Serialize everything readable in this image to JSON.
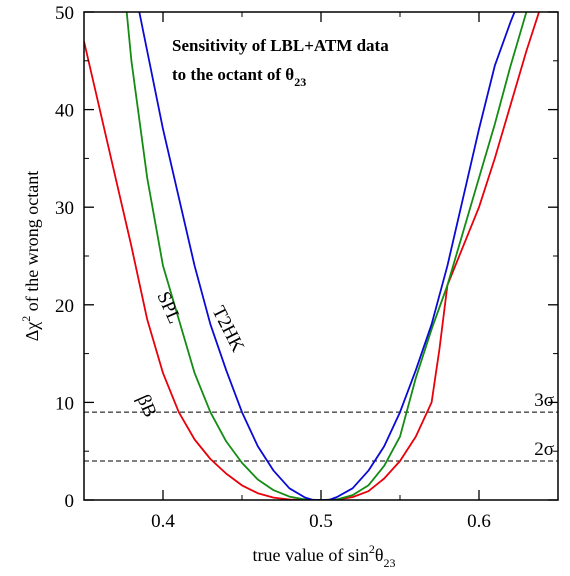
{
  "chart_data": {
    "type": "line",
    "title_line1": "Sensitivity of LBL+ATM data",
    "title_line2_prefix": "to the octant of θ",
    "title_line2_sub": "23",
    "xlabel_prefix": "true value of  sin",
    "xlabel_sup": "2",
    "xlabel_theta": "θ",
    "xlabel_sub": "23",
    "ylabel_prefix": "Δχ",
    "ylabel_sup": "2",
    "ylabel_suffix": " of the wrong octant",
    "xlim": [
      0.35,
      0.65
    ],
    "ylim": [
      0,
      50
    ],
    "x_ticks": [
      {
        "value": 0.4,
        "label": "0.4"
      },
      {
        "value": 0.5,
        "label": "0.5"
      },
      {
        "value": 0.6,
        "label": "0.6"
      }
    ],
    "y_ticks": [
      {
        "value": 0,
        "label": "0"
      },
      {
        "value": 10,
        "label": "10"
      },
      {
        "value": 20,
        "label": "20"
      },
      {
        "value": 30,
        "label": "30"
      },
      {
        "value": 40,
        "label": "40"
      },
      {
        "value": 50,
        "label": "50"
      }
    ],
    "reference_lines": [
      {
        "y": 9,
        "label": "3σ"
      },
      {
        "y": 4,
        "label": "2σ"
      }
    ],
    "series": [
      {
        "name": "βB",
        "color": "#e8000b",
        "x": [
          0.35,
          0.36,
          0.37,
          0.38,
          0.39,
          0.4,
          0.41,
          0.42,
          0.43,
          0.44,
          0.45,
          0.46,
          0.47,
          0.48,
          0.49,
          0.5,
          0.51,
          0.52,
          0.53,
          0.54,
          0.55,
          0.56,
          0.57,
          0.575,
          0.58,
          0.59,
          0.6,
          0.61,
          0.62,
          0.63,
          0.64
        ],
        "y": [
          47,
          40,
          33,
          26,
          18.5,
          13,
          9,
          6.2,
          4.2,
          2.7,
          1.5,
          0.7,
          0.25,
          0.05,
          0,
          0,
          0.05,
          0.3,
          0.9,
          2.2,
          4,
          6.5,
          10,
          15.5,
          22,
          26,
          30,
          35,
          40.5,
          46,
          51
        ]
      },
      {
        "name": "SPL",
        "color": "#138c13",
        "x": [
          0.377,
          0.38,
          0.39,
          0.4,
          0.41,
          0.42,
          0.43,
          0.44,
          0.45,
          0.46,
          0.47,
          0.48,
          0.49,
          0.5,
          0.51,
          0.52,
          0.53,
          0.54,
          0.55,
          0.555,
          0.56,
          0.565,
          0.57,
          0.58,
          0.59,
          0.6,
          0.61,
          0.62,
          0.63
        ],
        "y": [
          50,
          45,
          33,
          24,
          18.5,
          13,
          9,
          6,
          3.8,
          2.1,
          1,
          0.35,
          0.05,
          0,
          0.05,
          0.5,
          1.5,
          3.5,
          6.5,
          9.5,
          12.5,
          15,
          17.5,
          22,
          27.5,
          33,
          38.5,
          44.5,
          50
        ]
      },
      {
        "name": "T2HK",
        "color": "#0a0ad6",
        "x": [
          0.385,
          0.39,
          0.4,
          0.41,
          0.42,
          0.43,
          0.44,
          0.45,
          0.46,
          0.47,
          0.48,
          0.49,
          0.495,
          0.5,
          0.505,
          0.51,
          0.52,
          0.53,
          0.54,
          0.55,
          0.56,
          0.57,
          0.58,
          0.59,
          0.6,
          0.61,
          0.62,
          0.625
        ],
        "y": [
          50,
          46,
          38,
          31,
          24,
          18,
          13.3,
          9,
          5.5,
          3,
          1.2,
          0.25,
          0,
          0,
          0,
          0.3,
          1.2,
          3,
          5.5,
          9,
          13.3,
          18,
          24,
          31,
          38,
          44.5,
          49,
          51
        ]
      }
    ]
  }
}
